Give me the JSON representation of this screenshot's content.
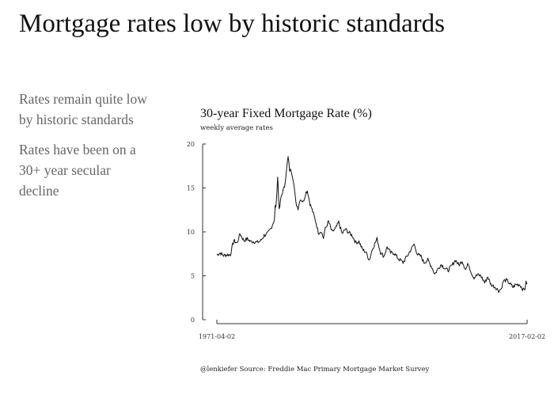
{
  "slide": {
    "title": "Mortgage rates low by historic standards",
    "bullets": [
      "Rates remain quite low by historic standards",
      "Rates have been on a 30+ year secular decline"
    ]
  },
  "chart_data": {
    "type": "line",
    "title": "30-year Fixed Mortgage Rate (%)",
    "subtitle": "weekly average rates",
    "caption": "@lenkiefer Source: Freddie Mac Primary Mortgage Market Survey",
    "x_range": [
      "1971-04-02",
      "2017-02-02"
    ],
    "x_tick_labels": [
      "1971-04-02",
      "2017-02-02"
    ],
    "ylim": [
      0,
      20
    ],
    "y_ticks": [
      0,
      5,
      10,
      15,
      20
    ],
    "grid": false,
    "line_color": "#111111",
    "series": [
      {
        "x": [
          "1971-04-02",
          "1971-10-01",
          "1972-04-01",
          "1972-10-01",
          "1973-04-01",
          "1973-08-01",
          "1973-10-01",
          "1974-04-01",
          "1974-09-01",
          "1975-04-01",
          "1975-10-01",
          "1976-04-01",
          "1976-10-01",
          "1977-04-01",
          "1977-10-01",
          "1978-04-01",
          "1978-10-01",
          "1979-04-01",
          "1979-10-01",
          "1979-11-15",
          "1980-01-01",
          "1980-03-25",
          "1980-04-15",
          "1980-06-15",
          "1980-10-01",
          "1981-04-01",
          "1981-07-01",
          "1981-10-09",
          "1982-01-01",
          "1982-04-01",
          "1982-08-01",
          "1982-12-01",
          "1983-04-01",
          "1983-08-01",
          "1984-01-01",
          "1984-06-01",
          "1984-08-15",
          "1985-01-01",
          "1985-06-01",
          "1985-12-01",
          "1986-04-01",
          "1986-09-01",
          "1987-01-01",
          "1987-04-01",
          "1987-10-01",
          "1988-04-01",
          "1988-10-01",
          "1989-04-01",
          "1989-10-01",
          "1990-04-01",
          "1990-10-01",
          "1991-04-01",
          "1991-10-01",
          "1992-04-01",
          "1992-10-01",
          "1993-04-01",
          "1993-10-15",
          "1994-04-01",
          "1994-12-01",
          "1995-06-01",
          "1995-12-01",
          "1996-06-01",
          "1996-12-01",
          "1997-06-01",
          "1998-01-01",
          "1998-10-05",
          "1999-06-01",
          "2000-05-19",
          "2000-12-01",
          "2001-06-01",
          "2001-11-01",
          "2002-06-01",
          "2003-01-01",
          "2003-06-15",
          "2004-01-01",
          "2004-06-01",
          "2005-01-01",
          "2005-06-01",
          "2006-01-01",
          "2006-07-01",
          "2007-01-01",
          "2007-07-01",
          "2008-01-01",
          "2008-06-01",
          "2008-12-01",
          "2009-04-01",
          "2009-10-01",
          "2010-04-01",
          "2010-11-01",
          "2011-04-01",
          "2011-10-01",
          "2012-06-01",
          "2012-11-21",
          "2013-04-01",
          "2013-08-01",
          "2014-01-01",
          "2014-06-01",
          "2015-01-01",
          "2015-06-01",
          "2016-01-01",
          "2016-07-08",
          "2016-10-01",
          "2016-12-01",
          "2017-02-02"
        ],
        "y": [
          7.4,
          7.6,
          7.3,
          7.4,
          7.4,
          8.5,
          9.0,
          8.7,
          9.8,
          9.0,
          9.2,
          8.9,
          8.9,
          8.8,
          9.0,
          9.6,
          9.8,
          10.4,
          11.4,
          12.9,
          12.9,
          16.3,
          15.5,
          12.4,
          14.0,
          15.2,
          16.8,
          18.5,
          17.0,
          17.0,
          15.8,
          13.3,
          12.7,
          13.8,
          13.4,
          14.5,
          14.7,
          13.2,
          12.3,
          11.0,
          9.9,
          10.1,
          9.3,
          10.3,
          11.2,
          10.0,
          10.3,
          11.1,
          9.8,
          10.3,
          9.9,
          9.6,
          8.8,
          8.9,
          8.0,
          7.7,
          6.8,
          8.1,
          9.2,
          7.7,
          7.2,
          8.3,
          7.6,
          7.6,
          7.0,
          6.5,
          7.3,
          8.6,
          7.4,
          7.2,
          6.5,
          6.8,
          6.0,
          5.2,
          5.9,
          6.3,
          5.8,
          5.6,
          6.2,
          6.8,
          6.2,
          6.7,
          5.7,
          6.4,
          5.2,
          4.8,
          5.1,
          5.0,
          4.2,
          4.9,
          4.0,
          3.7,
          3.3,
          3.5,
          4.4,
          4.5,
          4.2,
          3.7,
          4.0,
          4.0,
          3.4,
          3.5,
          4.2,
          4.2
        ]
      }
    ]
  }
}
